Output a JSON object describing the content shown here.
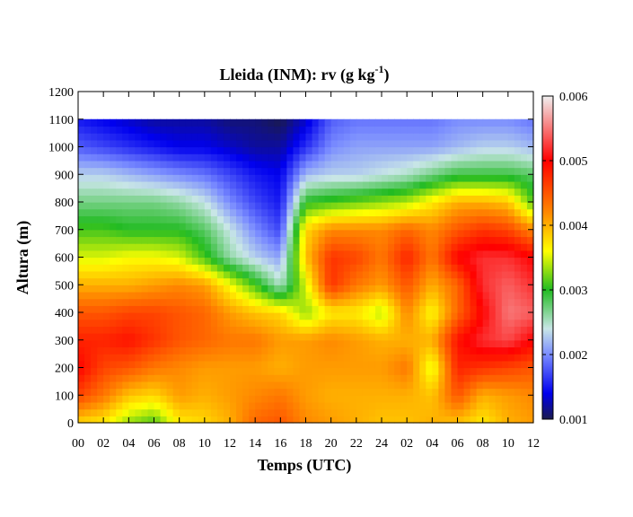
{
  "chart_data": {
    "type": "heatmap",
    "title_main": "Lleida (INM): rv (g kg",
    "title_sup": "-1",
    "title_end": ")",
    "xlabel": "Temps (UTC)",
    "ylabel": "Altura (m)",
    "x_tick_labels": [
      "00",
      "02",
      "04",
      "06",
      "08",
      "10",
      "12",
      "14",
      "16",
      "18",
      "20",
      "22",
      "24",
      "02",
      "04",
      "06",
      "08",
      "10",
      "12"
    ],
    "xlim": [
      0,
      36
    ],
    "ylim": [
      0,
      1200
    ],
    "y_ticks": [
      0,
      100,
      200,
      300,
      400,
      500,
      600,
      700,
      800,
      900,
      1000,
      1100,
      1200
    ],
    "colorbar": {
      "range": [
        0.001,
        0.006
      ],
      "ticks": [
        "0.001",
        "0.002",
        "0.003",
        "0.004",
        "0.005",
        "0.006"
      ],
      "stops": [
        {
          "v": 0.001,
          "color": "#1a1a4e"
        },
        {
          "v": 0.0014,
          "color": "#0000ee"
        },
        {
          "v": 0.002,
          "color": "#7a8cff"
        },
        {
          "v": 0.0024,
          "color": "#c8e6e6"
        },
        {
          "v": 0.003,
          "color": "#22bb22"
        },
        {
          "v": 0.0036,
          "color": "#ffff00"
        },
        {
          "v": 0.0042,
          "color": "#ff8800"
        },
        {
          "v": 0.005,
          "color": "#ff0000"
        },
        {
          "v": 0.006,
          "color": "#f0f0f0"
        }
      ]
    },
    "heights": [
      0,
      100,
      200,
      300,
      400,
      500,
      600,
      700,
      800,
      900,
      1000,
      1100
    ],
    "times": [
      0,
      2,
      4,
      6,
      8,
      10,
      12,
      14,
      16,
      18,
      20,
      22,
      24,
      26,
      28,
      30,
      32,
      34,
      36
    ],
    "values": [
      [
        0.0038,
        0.0037,
        0.0033,
        0.0031,
        0.0037,
        0.0038,
        0.004,
        0.0044,
        0.0045,
        0.0042,
        0.0041,
        0.004,
        0.0039,
        0.0039,
        0.004,
        0.0039,
        0.0037,
        0.004,
        0.0041
      ],
      [
        0.0046,
        0.0043,
        0.0039,
        0.0038,
        0.0041,
        0.004,
        0.0041,
        0.0042,
        0.0043,
        0.0041,
        0.004,
        0.004,
        0.004,
        0.004,
        0.0039,
        0.0045,
        0.004,
        0.0041,
        0.0042
      ],
      [
        0.005,
        0.0046,
        0.0045,
        0.0043,
        0.0042,
        0.0041,
        0.0041,
        0.0041,
        0.004,
        0.0041,
        0.0041,
        0.0041,
        0.0041,
        0.0043,
        0.0035,
        0.0048,
        0.0047,
        0.0046,
        0.0045
      ],
      [
        0.0048,
        0.0048,
        0.0049,
        0.0047,
        0.0045,
        0.0044,
        0.0043,
        0.0043,
        0.0041,
        0.0041,
        0.0042,
        0.0041,
        0.004,
        0.004,
        0.004,
        0.0049,
        0.0052,
        0.0053,
        0.005
      ],
      [
        0.0045,
        0.0045,
        0.0046,
        0.0046,
        0.0045,
        0.0044,
        0.0041,
        0.0039,
        0.0038,
        0.0033,
        0.0037,
        0.0037,
        0.0034,
        0.0042,
        0.0036,
        0.0044,
        0.005,
        0.0055,
        0.0054
      ],
      [
        0.004,
        0.004,
        0.004,
        0.0041,
        0.0042,
        0.0041,
        0.0036,
        0.0031,
        0.0025,
        0.0035,
        0.0047,
        0.0043,
        0.0041,
        0.0045,
        0.004,
        0.0044,
        0.0052,
        0.0054,
        0.0052
      ],
      [
        0.0035,
        0.0035,
        0.0036,
        0.0036,
        0.0035,
        0.0031,
        0.0026,
        0.0023,
        0.0021,
        0.0039,
        0.0047,
        0.0046,
        0.0043,
        0.0048,
        0.0043,
        0.005,
        0.0052,
        0.0052,
        0.005
      ],
      [
        0.0031,
        0.0031,
        0.003,
        0.003,
        0.003,
        0.0028,
        0.0024,
        0.002,
        0.0017,
        0.0038,
        0.0042,
        0.0042,
        0.0042,
        0.0044,
        0.0042,
        0.0045,
        0.0047,
        0.0046,
        0.0042
      ],
      [
        0.0027,
        0.0027,
        0.0027,
        0.0027,
        0.0026,
        0.0024,
        0.002,
        0.0017,
        0.0015,
        0.003,
        0.0031,
        0.0032,
        0.0033,
        0.0034,
        0.0037,
        0.004,
        0.004,
        0.0039,
        0.0031
      ],
      [
        0.0023,
        0.0023,
        0.0022,
        0.0021,
        0.002,
        0.0019,
        0.0017,
        0.0015,
        0.0014,
        0.0022,
        0.0023,
        0.0023,
        0.0024,
        0.0025,
        0.0027,
        0.0029,
        0.0029,
        0.0029,
        0.0028
      ],
      [
        0.0018,
        0.0017,
        0.0016,
        0.0015,
        0.0014,
        0.0014,
        0.0013,
        0.0012,
        0.0012,
        0.0016,
        0.002,
        0.0021,
        0.0021,
        0.0021,
        0.0021,
        0.0022,
        0.0023,
        0.0023,
        0.0022
      ],
      [
        0.0015,
        0.0014,
        0.0013,
        0.0012,
        0.0012,
        0.0012,
        0.0011,
        0.0011,
        0.001,
        0.0013,
        0.0018,
        0.0019,
        0.0019,
        0.0019,
        0.0019,
        0.002,
        0.002,
        0.002,
        0.0019
      ]
    ]
  }
}
